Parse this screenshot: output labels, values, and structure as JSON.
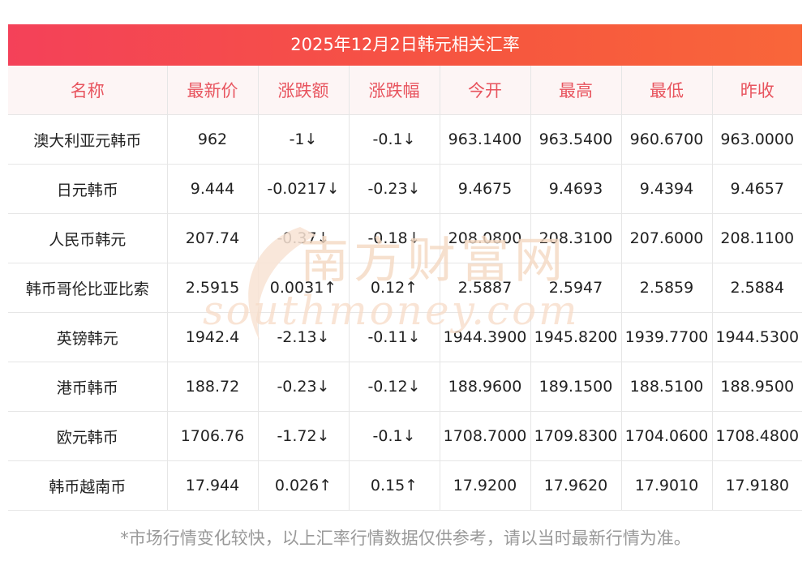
{
  "title": "2025年12月2日韩元相关汇率",
  "columns": [
    "名称",
    "最新价",
    "涨跌额",
    "涨跌幅",
    "今开",
    "最高",
    "最低",
    "昨收"
  ],
  "rows": [
    {
      "name": "澳大利亚元韩币",
      "latest": "962",
      "change": "-1↓",
      "change_pct": "-0.1↓",
      "open": "963.1400",
      "high": "963.5400",
      "low": "960.6700",
      "prev_close": "963.0000",
      "direction": "down"
    },
    {
      "name": "日元韩币",
      "latest": "9.444",
      "change": "-0.0217↓",
      "change_pct": "-0.23↓",
      "open": "9.4675",
      "high": "9.4693",
      "low": "9.4394",
      "prev_close": "9.4657",
      "direction": "down"
    },
    {
      "name": "人民币韩元",
      "latest": "207.74",
      "change": "-0.37↓",
      "change_pct": "-0.18↓",
      "open": "208.0800",
      "high": "208.3100",
      "low": "207.6000",
      "prev_close": "208.1100",
      "direction": "down"
    },
    {
      "name": "韩币哥伦比亚比索",
      "latest": "2.5915",
      "change": "0.0031↑",
      "change_pct": "0.12↑",
      "open": "2.5887",
      "high": "2.5947",
      "low": "2.5859",
      "prev_close": "2.5884",
      "direction": "up"
    },
    {
      "name": "英镑韩元",
      "latest": "1942.4",
      "change": "-2.13↓",
      "change_pct": "-0.11↓",
      "open": "1944.3900",
      "high": "1945.8200",
      "low": "1939.7700",
      "prev_close": "1944.5300",
      "direction": "down"
    },
    {
      "name": "港币韩币",
      "latest": "188.72",
      "change": "-0.23↓",
      "change_pct": "-0.12↓",
      "open": "188.9600",
      "high": "189.1500",
      "low": "188.5100",
      "prev_close": "188.9500",
      "direction": "down"
    },
    {
      "name": "欧元韩币",
      "latest": "1706.76",
      "change": "-1.72↓",
      "change_pct": "-0.1↓",
      "open": "1708.7000",
      "high": "1709.8300",
      "low": "1704.0600",
      "prev_close": "1708.4800",
      "direction": "down"
    },
    {
      "name": "韩币越南币",
      "latest": "17.944",
      "change": "0.026↑",
      "change_pct": "0.15↑",
      "open": "17.9200",
      "high": "17.9620",
      "low": "17.9010",
      "prev_close": "17.9180",
      "direction": "up"
    }
  ],
  "watermark": {
    "text_cn": "南方财富网",
    "text_en": "southmoney.com",
    "color": "#f5d9c2"
  },
  "footnote": "*市场行情变化较快，以上汇率行情数据仅供参考，请以当时最新行情为准。",
  "colors": {
    "accent_start": "#f44159",
    "accent_end": "#f9663a",
    "header_text": "#e8545e",
    "header_bg": "#fdf5f5",
    "down": "#1e8a1e",
    "up": "#e8231d"
  }
}
